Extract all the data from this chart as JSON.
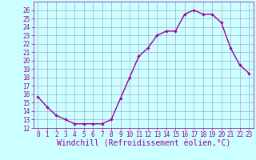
{
  "hours": [
    0,
    1,
    2,
    3,
    4,
    5,
    6,
    7,
    8,
    9,
    10,
    11,
    12,
    13,
    14,
    15,
    16,
    17,
    18,
    19,
    20,
    21,
    22,
    23
  ],
  "values": [
    15.7,
    14.5,
    13.5,
    13.0,
    12.5,
    12.5,
    12.5,
    12.5,
    13.0,
    15.5,
    18.0,
    20.5,
    21.5,
    23.0,
    23.5,
    23.5,
    25.5,
    26.0,
    25.5,
    25.5,
    24.5,
    21.5,
    19.5,
    18.5
  ],
  "line_color": "#990099",
  "marker": "D",
  "marker_size": 1.8,
  "bg_color": "#ccffff",
  "grid_color": "#aaaacc",
  "xlabel": "Windchill (Refroidissement éolien,°C)",
  "xlabel_color": "#990099",
  "ylim": [
    12,
    27
  ],
  "xlim_min": -0.5,
  "xlim_max": 23.5,
  "yticks": [
    12,
    13,
    14,
    15,
    16,
    17,
    18,
    19,
    20,
    21,
    22,
    23,
    24,
    25,
    26
  ],
  "xticks": [
    0,
    1,
    2,
    3,
    4,
    5,
    6,
    7,
    8,
    9,
    10,
    11,
    12,
    13,
    14,
    15,
    16,
    17,
    18,
    19,
    20,
    21,
    22,
    23
  ],
  "tick_label_color": "#990099",
  "tick_label_fontsize": 5.5,
  "xlabel_fontsize": 7.0,
  "line_width": 1.0
}
